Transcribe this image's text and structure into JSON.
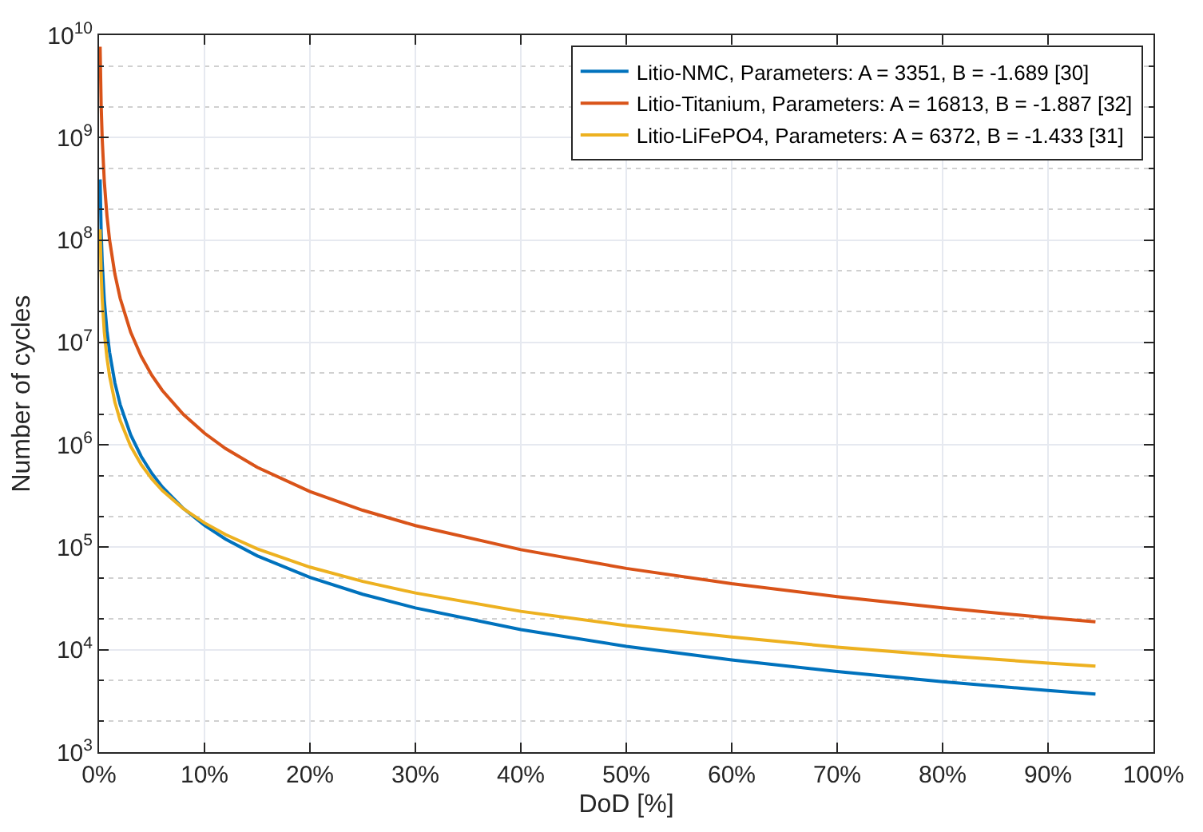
{
  "chart_data": {
    "type": "line",
    "xlabel": "DoD [%]",
    "ylabel": "Number of cycles",
    "x": [
      0.1,
      0.2,
      0.3,
      0.5,
      0.75,
      1,
      1.5,
      2,
      3,
      4,
      5,
      6,
      8,
      10,
      12,
      15,
      20,
      25,
      30,
      40,
      50,
      60,
      70,
      80,
      90,
      94.5
    ],
    "series": [
      {
        "name": "Litio-NMC, Parameters: A = 3351, B = -1.689 [30]",
        "color": "#0072bd",
        "values": [
          391000000,
          121000000,
          61100000,
          25800000,
          13000000,
          8000000,
          4040000,
          2480000,
          1250000,
          770000,
          528000,
          388000,
          239000,
          164000,
          120000,
          82600,
          50800,
          34800,
          25600,
          15700,
          10800,
          7950,
          6130,
          4880,
          4000,
          3690
        ]
      },
      {
        "name": "Litio-Titanium, Parameters: A = 16813, B = -1.887 [32]",
        "color": "#d95319",
        "values": [
          7700000000,
          2080000000,
          970000000,
          370000000,
          172000000,
          99900000,
          46500000,
          27000000,
          12600000,
          7310000,
          4790000,
          3400000,
          1980000,
          1300000,
          920000,
          604000,
          350000,
          230000,
          163000,
          94800,
          62200,
          44100,
          33000,
          25600,
          20500,
          18700
        ]
      },
      {
        "name": "Litio-LiFePO4, Parameters: A = 6372, B = -1.433 [31]",
        "color": "#edb120",
        "values": [
          127000000,
          47000000,
          26300000,
          12600000,
          7070000,
          4680000,
          2620000,
          1730000,
          969000,
          642000,
          466000,
          359000,
          238000,
          173000,
          133000,
          96700,
          64000,
          46500,
          35800,
          23700,
          17200,
          13300,
          10600,
          8770,
          7410,
          6910
        ]
      }
    ],
    "log": "y",
    "xlim": [
      0,
      100
    ],
    "ylim": [
      1000,
      10000000000
    ],
    "xticks": [
      {
        "value": 0,
        "label": "0%"
      },
      {
        "value": 10,
        "label": "10%"
      },
      {
        "value": 20,
        "label": "20%"
      },
      {
        "value": 30,
        "label": "30%"
      },
      {
        "value": 40,
        "label": "40%"
      },
      {
        "value": 50,
        "label": "50%"
      },
      {
        "value": 60,
        "label": "60%"
      },
      {
        "value": 70,
        "label": "70%"
      },
      {
        "value": 80,
        "label": "80%"
      },
      {
        "value": 90,
        "label": "90%"
      },
      {
        "value": 100,
        "label": "100%"
      }
    ],
    "yticks": [
      {
        "value": 1000,
        "label": "10$^{3}$"
      },
      {
        "value": 10000,
        "label": "10$^{4}$"
      },
      {
        "value": 100000,
        "label": "10$^{5}$"
      },
      {
        "value": 1000000,
        "label": "10$^{6}$"
      },
      {
        "value": 10000000,
        "label": "10$^{7}$"
      },
      {
        "value": 100000000,
        "label": "10$^{8}$"
      },
      {
        "value": 1000000000,
        "label": "10$^{9}$"
      },
      {
        "value": 10000000000,
        "label": "10$^{10}$"
      }
    ],
    "grid": true,
    "legend": "top right",
    "marker": "none",
    "line_style": "solid"
  }
}
